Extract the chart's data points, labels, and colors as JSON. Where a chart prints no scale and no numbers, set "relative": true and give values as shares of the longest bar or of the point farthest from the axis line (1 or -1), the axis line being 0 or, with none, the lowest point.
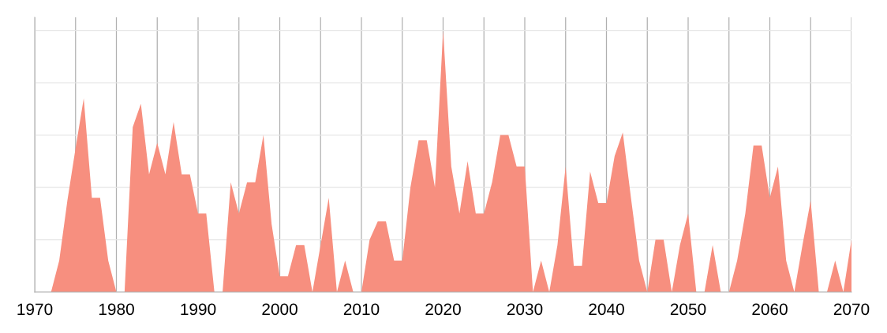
{
  "chart_data": {
    "type": "area",
    "relative": true,
    "color": "#f78f7f",
    "x": [
      1972,
      1973,
      1974,
      1975,
      1976,
      1977,
      1978,
      1979,
      1980,
      1981,
      1982,
      1983,
      1984,
      1985,
      1986,
      1987,
      1988,
      1989,
      1990,
      1991,
      1992,
      1993,
      1994,
      1995,
      1996,
      1997,
      1998,
      1999,
      2000,
      2001,
      2002,
      2003,
      2004,
      2005,
      2006,
      2007,
      2008,
      2009,
      2010,
      2011,
      2012,
      2013,
      2014,
      2015,
      2016,
      2017,
      2018,
      2019,
      2020,
      2021,
      2022,
      2023,
      2024,
      2025,
      2026,
      2027,
      2028,
      2029,
      2030,
      2031,
      2032,
      2033,
      2034,
      2035,
      2036,
      2037,
      2038,
      2039,
      2040,
      2041,
      2042,
      2043,
      2044,
      2045,
      2046,
      2047,
      2048,
      2049,
      2050,
      2051,
      2052,
      2053,
      2054,
      2055,
      2056,
      2057,
      2058,
      2059,
      2060,
      2061,
      2062,
      2063,
      2064,
      2065,
      2066,
      2067,
      2068,
      2069,
      2070
    ],
    "values": [
      0,
      0.12,
      0.35,
      0.55,
      0.74,
      0.36,
      0.36,
      0.12,
      0,
      0,
      0.63,
      0.72,
      0.45,
      0.57,
      0.45,
      0.65,
      0.45,
      0.45,
      0.3,
      0.3,
      0,
      0,
      0.42,
      0.3,
      0.42,
      0.42,
      0.6,
      0.26,
      0.06,
      0.06,
      0.18,
      0.18,
      0,
      0.18,
      0.36,
      0,
      0.12,
      0,
      0,
      0.2,
      0.27,
      0.27,
      0.12,
      0.12,
      0.4,
      0.58,
      0.58,
      0.4,
      1,
      0.48,
      0.3,
      0.5,
      0.3,
      0.3,
      0.42,
      0.6,
      0.6,
      0.48,
      0.48,
      0,
      0.12,
      0,
      0.18,
      0.48,
      0.1,
      0.1,
      0.46,
      0.34,
      0.34,
      0.52,
      0.61,
      0.36,
      0.12,
      0,
      0.2,
      0.2,
      0,
      0.18,
      0.3,
      0,
      0,
      0.18,
      0,
      0,
      0.12,
      0.3,
      0.56,
      0.56,
      0.36,
      0.48,
      0.12,
      0,
      0.18,
      0.35,
      0,
      0,
      0.12,
      0,
      0.2
    ],
    "xlim": [
      1970,
      2070
    ],
    "xticks": [
      1970,
      {
        "value": 1975,
        "label": null
      },
      1980,
      {
        "value": 1985,
        "label": null
      },
      1990,
      {
        "value": 1995,
        "label": null
      },
      2000,
      {
        "value": 2005,
        "label": null
      },
      2010,
      {
        "value": 2015,
        "label": null
      },
      2020,
      {
        "value": 2025,
        "label": null
      },
      2030,
      {
        "value": 2035,
        "label": null
      },
      2040,
      {
        "value": 2045,
        "label": null
      },
      2050,
      {
        "value": 2055,
        "label": null
      },
      2060,
      {
        "value": 2065,
        "label": null
      },
      2070
    ],
    "grid": true,
    "tick_labels": "x"
  }
}
